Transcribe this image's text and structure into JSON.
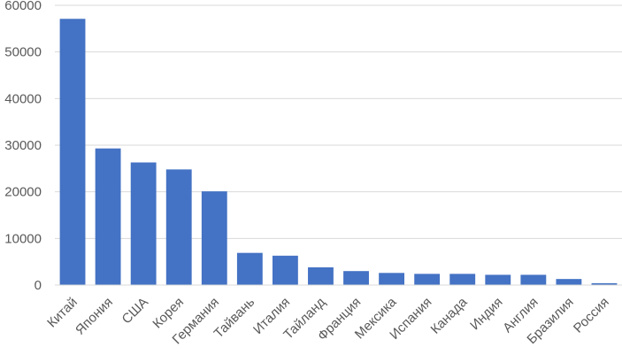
{
  "chart_data": {
    "type": "bar",
    "categories": [
      "Китай",
      "Япония",
      "США",
      "Корея",
      "Германия",
      "Тайвань",
      "Италия",
      "Тайланд",
      "Франция",
      "Мексика",
      "Испания",
      "Канада",
      "Индия",
      "Англия",
      "Бразилия",
      "Россия"
    ],
    "values": [
      57100,
      29300,
      26300,
      24800,
      20100,
      6900,
      6300,
      3800,
      3000,
      2600,
      2400,
      2400,
      2200,
      2200,
      1300,
      400
    ],
    "ylim": [
      0,
      60000
    ],
    "yticks": [
      0,
      10000,
      20000,
      30000,
      40000,
      50000,
      60000
    ],
    "ytick_labels": [
      "0",
      "10000",
      "20000",
      "30000",
      "40000",
      "50000",
      "60000"
    ],
    "grid": true,
    "bar_color": "#4472C4",
    "grid_color": "#D9D9D9",
    "text_color": "#595959"
  }
}
